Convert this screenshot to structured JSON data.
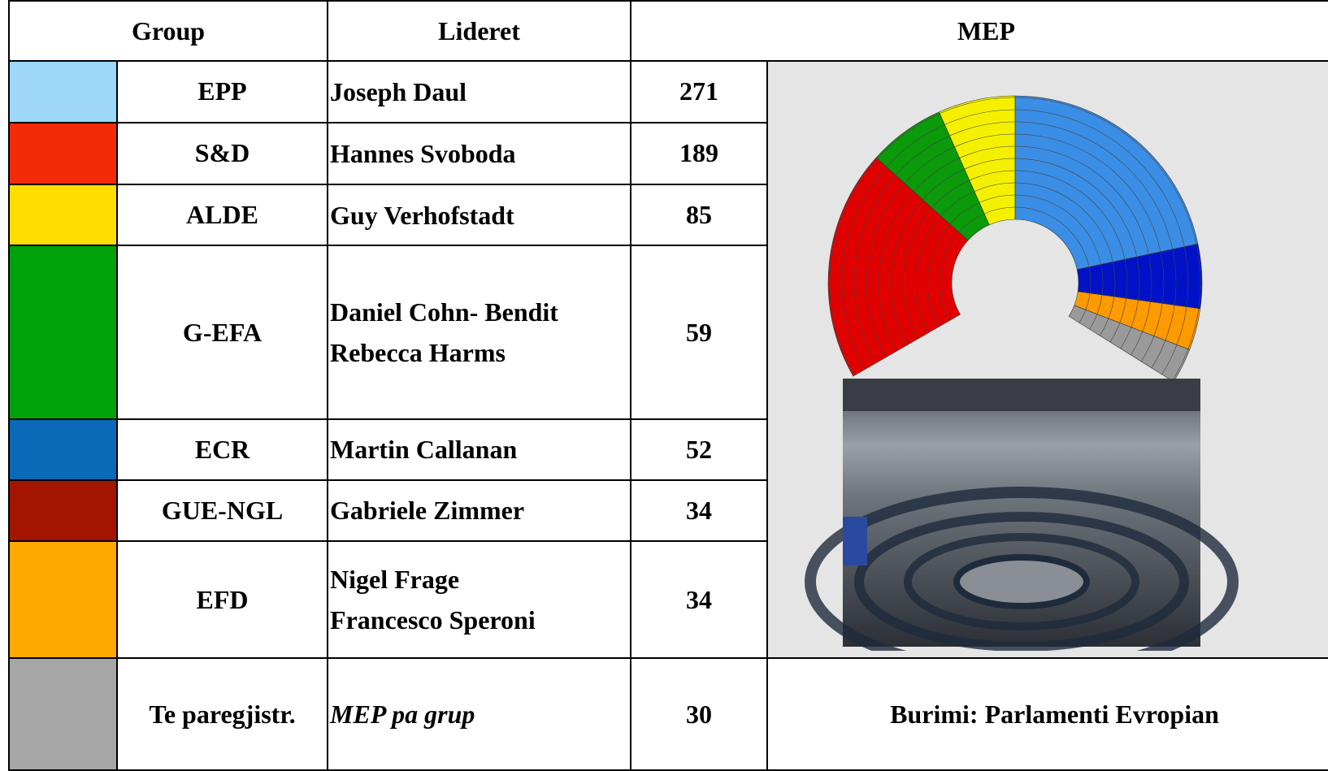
{
  "header": {
    "group": "Group",
    "leaders": "Lideret",
    "mep": "MEP"
  },
  "rows": [
    {
      "group": "EPP",
      "color": "#9dd8fb",
      "leaders": [
        "Joseph Daul"
      ],
      "mep": "271"
    },
    {
      "group": "S&D",
      "color": "#f52a06",
      "leaders": [
        "Hannes Svoboda"
      ],
      "mep": "189"
    },
    {
      "group": "ALDE",
      "color": "#ffde00",
      "leaders": [
        "Guy Verhofstadt"
      ],
      "mep": "85"
    },
    {
      "group": "G-EFA",
      "color": "#00a20a",
      "leaders": [
        "Daniel Cohn- Bendit",
        "Rebecca Harms"
      ],
      "mep": "59"
    },
    {
      "group": "ECR",
      "color": "#0a6ab8",
      "leaders": [
        "Martin Callanan"
      ],
      "mep": "52"
    },
    {
      "group": "GUE-NGL",
      "color": "#a41500",
      "leaders": [
        "Gabriele Zimmer"
      ],
      "mep": "34"
    },
    {
      "group": "EFD",
      "color": "#ffa900",
      "leaders": [
        "Nigel Frage",
        "Francesco Speroni"
      ],
      "mep": "34"
    },
    {
      "group": "Te paregjistr.",
      "color": "#a6a6a6",
      "leaders": [
        "MEP pa grup"
      ],
      "mep": "30"
    }
  ],
  "source": "Burimi: Parlamenti Evropian"
}
